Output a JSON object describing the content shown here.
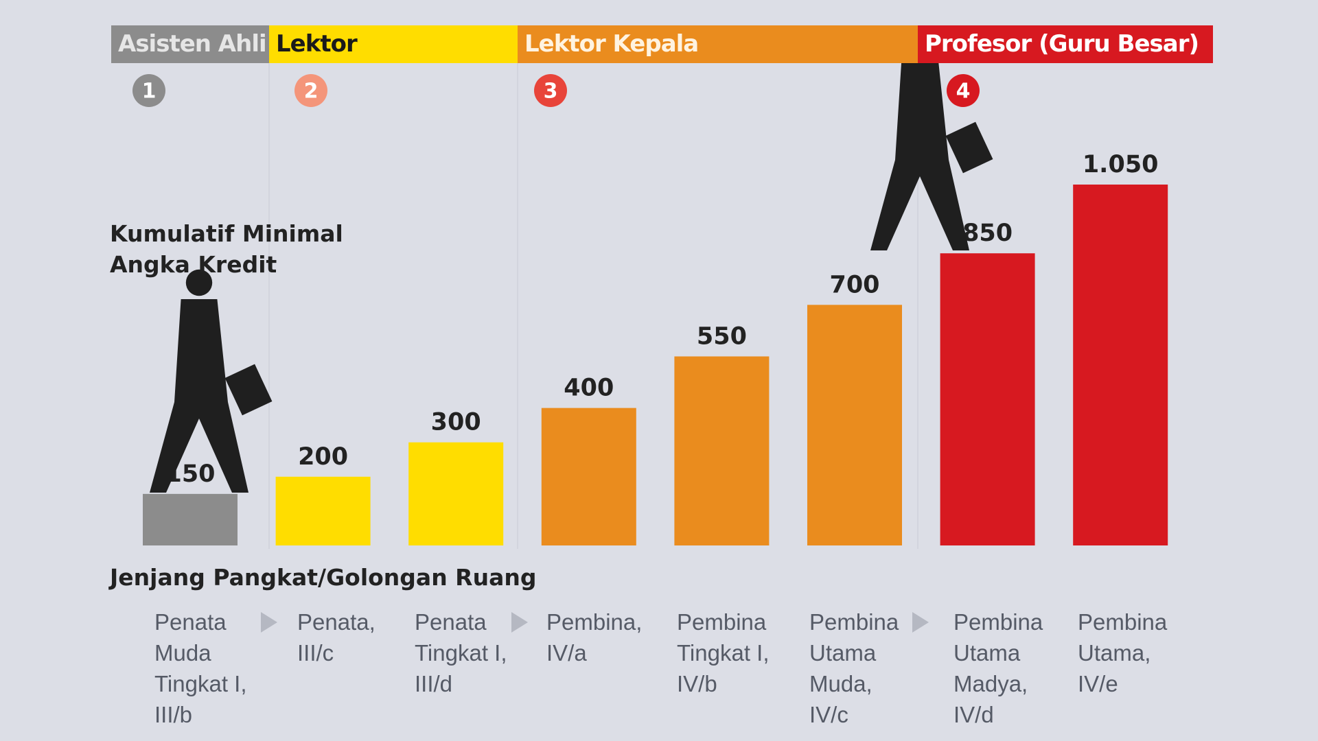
{
  "chart_data": {
    "type": "bar",
    "title": "Kumulatif Minimal\nAngka Kredit",
    "x_label": "Jenjang Pangkat/Golongan Ruang",
    "stages": [
      {
        "number": 1,
        "name": "Asisten Ahli",
        "color": "#8c8c8c",
        "badge_color": "#8c8c8c",
        "text_color": "#e6e6e6"
      },
      {
        "number": 2,
        "name": "Lektor",
        "color": "#ffdd00",
        "badge_color": "#f4957a",
        "text_color": "#1a1a1a"
      },
      {
        "number": 3,
        "name": "Lektor Kepala",
        "color": "#ea8c1e",
        "badge_color": "#e8443a",
        "text_color": "#fff3e0"
      },
      {
        "number": 4,
        "name": "Profesor (Guru Besar)",
        "color": "#d71920",
        "badge_color": "#d71920",
        "text_color": "#ffffff"
      }
    ],
    "categories": [
      "Penata\nMuda\nTingkat I,\nIII/b",
      "Penata,\nIII/c",
      "Penata\nTingkat I,\nIII/d",
      "Pembina,\nIV/a",
      "Pembina\nTingkat I,\nIV/b",
      "Pembina\nUtama\nMuda,\nIV/c",
      "Pembina\nUtama\nMadya,\nIV/d",
      "Pembina\nUtama,\nIV/e"
    ],
    "values": [
      150,
      200,
      300,
      400,
      550,
      700,
      850,
      1050
    ],
    "value_labels": [
      "150",
      "200",
      "300",
      "400",
      "550",
      "700",
      "850",
      "1.050"
    ],
    "colors": [
      "#8c8c8c",
      "#ffdd00",
      "#ffdd00",
      "#ea8c1e",
      "#ea8c1e",
      "#ea8c1e",
      "#d71920",
      "#d71920"
    ],
    "ylim": [
      0,
      1050
    ]
  }
}
